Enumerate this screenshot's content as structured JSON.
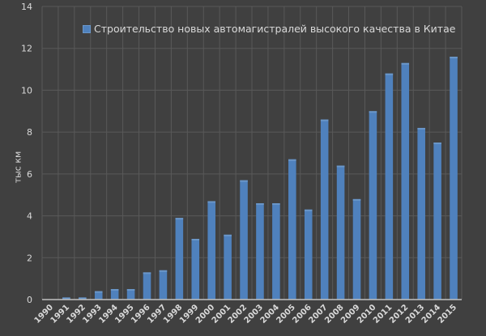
{
  "chart_data": {
    "type": "bar",
    "title": "",
    "xlabel": "",
    "ylabel": "тыс км",
    "ylim": [
      0,
      14
    ],
    "yticks": [
      0,
      2,
      4,
      6,
      8,
      10,
      12,
      14
    ],
    "grid": true,
    "legend_position": "top-inside",
    "categories": [
      "1990",
      "1991",
      "1992",
      "1993",
      "1994",
      "1995",
      "1996",
      "1997",
      "1998",
      "1999",
      "2000",
      "2001",
      "2002",
      "2003",
      "2004",
      "2005",
      "2006",
      "2007",
      "2008",
      "2009",
      "2010",
      "2011",
      "2012",
      "2013",
      "2014",
      "2015"
    ],
    "series": [
      {
        "name": "Строительство новых автомагистралей высокого качества в Китае",
        "color": "#4f81bd",
        "values": [
          0,
          0.1,
          0.1,
          0.4,
          0.5,
          0.5,
          1.3,
          1.4,
          3.9,
          2.9,
          4.7,
          3.1,
          5.7,
          4.6,
          4.6,
          6.7,
          4.3,
          8.6,
          6.4,
          4.8,
          9.0,
          10.8,
          11.3,
          8.2,
          7.5,
          11.6
        ]
      }
    ]
  },
  "legend": {
    "label": "Строительство новых автомагистралей высокого качества в Китае"
  },
  "axis": {
    "ylabel": "тыс км"
  },
  "colors": {
    "background": "#404040",
    "bar": "#4f81bd",
    "bar_top": "#6a96c8",
    "grid": "#595959",
    "text": "#d9d9d9",
    "axis": "#bfbfbf"
  }
}
